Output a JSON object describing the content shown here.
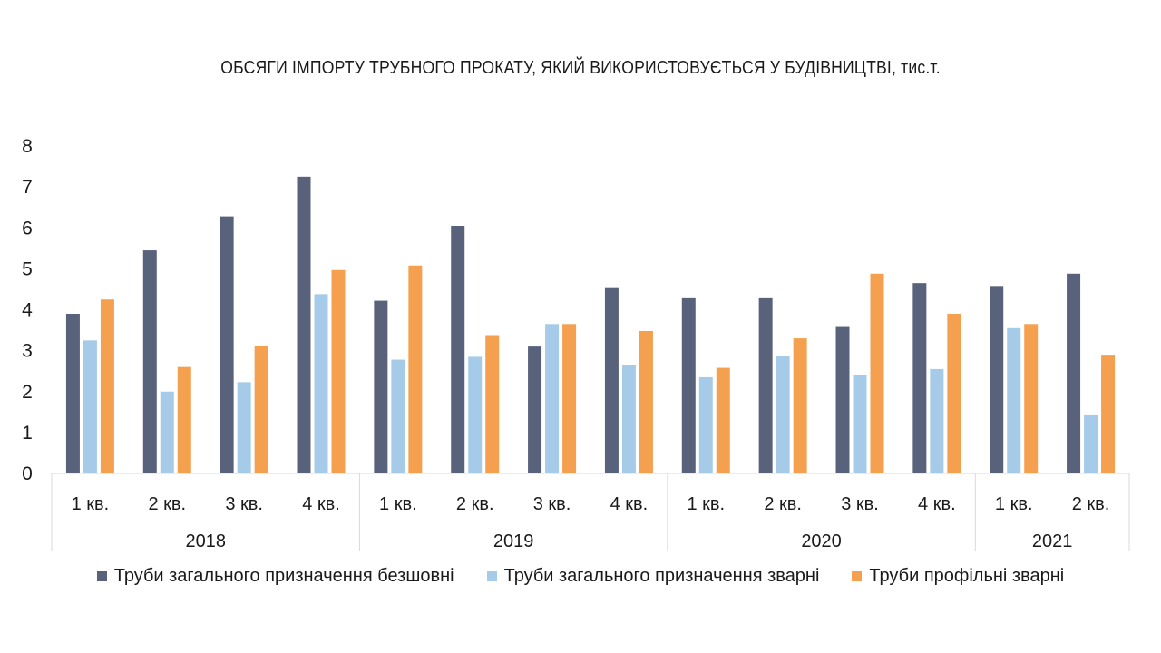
{
  "chart_data": {
    "type": "bar",
    "title": "ОБСЯГИ ІМПОРТУ ТРУБНОГО ПРОКАТУ, ЯКИЙ ВИКОРИСТОВУЄТЬСЯ У БУДІВНИЦТВІ, тис.т.",
    "categories": [
      "1 кв.",
      "2 кв.",
      "3 кв.",
      "4 кв.",
      "1 кв.",
      "2 кв.",
      "3 кв.",
      "4 кв.",
      "1 кв.",
      "2 кв.",
      "3 кв.",
      "4 кв.",
      "1 кв.",
      "2 кв."
    ],
    "groups": [
      {
        "label": "2018",
        "count": 4
      },
      {
        "label": "2019",
        "count": 4
      },
      {
        "label": "2020",
        "count": 4
      },
      {
        "label": "2021",
        "count": 2
      }
    ],
    "series": [
      {
        "name": "Труби загального призначення безшовні",
        "color": "#58627a",
        "values": [
          3.9,
          5.45,
          6.28,
          7.25,
          4.22,
          6.05,
          3.1,
          4.55,
          4.28,
          4.28,
          3.6,
          4.65,
          4.58,
          4.88
        ]
      },
      {
        "name": "Труби загального призначення зварні",
        "color": "#a5cbe8",
        "values": [
          3.25,
          2.0,
          2.23,
          4.38,
          2.78,
          2.85,
          3.65,
          2.65,
          2.35,
          2.88,
          2.4,
          2.55,
          3.55,
          1.42
        ]
      },
      {
        "name": "Труби профільні зварні",
        "color": "#f5a04e",
        "values": [
          4.25,
          2.6,
          3.12,
          4.97,
          5.08,
          3.38,
          3.65,
          3.48,
          2.58,
          3.3,
          4.88,
          3.9,
          3.65,
          2.9
        ]
      }
    ],
    "ylim": [
      0,
      8
    ],
    "yticks": [
      "0",
      "1",
      "2",
      "3",
      "4",
      "5",
      "6",
      "7",
      "8"
    ],
    "grid": false,
    "legend_position": "bottom"
  }
}
